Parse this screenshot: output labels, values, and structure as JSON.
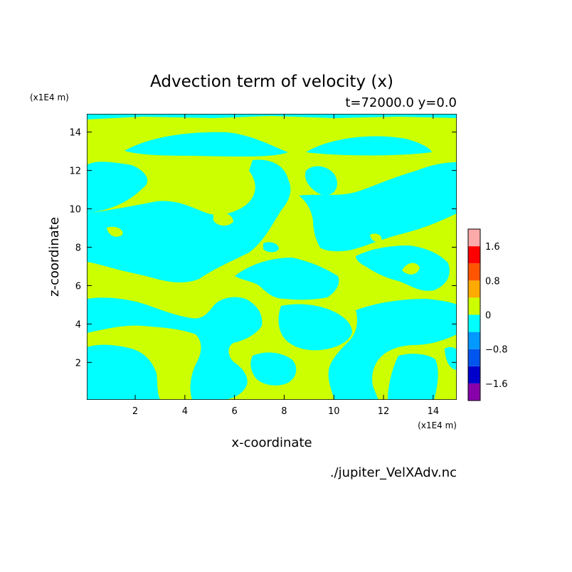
{
  "chart_data": {
    "type": "heatmap",
    "title": "Advection term of velocity (x)",
    "subtitle": "t=72000.0 y=0.0",
    "xlabel": "x-coordinate",
    "ylabel": "z-coordinate",
    "x_unit": "(x1E4 m)",
    "y_unit": "(x1E4 m)",
    "xlim": [
      0.05,
      14.95
    ],
    "ylim": [
      0.05,
      14.95
    ],
    "x_ticks": [
      2,
      4,
      6,
      8,
      10,
      12,
      14
    ],
    "y_ticks": [
      2,
      4,
      6,
      8,
      10,
      12,
      14
    ],
    "colorbar": {
      "levels": [
        -2.0,
        -1.6,
        -1.2,
        -0.8,
        -0.4,
        0,
        0.4,
        0.8,
        1.2,
        1.6,
        2.0
      ],
      "labels": [
        -1.6,
        -0.8,
        0,
        0.8,
        1.6
      ],
      "colors": [
        "#8800aa",
        "#0000cc",
        "#0055ee",
        "#0099ff",
        "#00ffff",
        "#ccff00",
        "#ffaa00",
        "#ff5500",
        "#ff0000",
        "#ffaaaa"
      ]
    },
    "field_colors": {
      "negative": "#00ffff",
      "positive": "#ccff00"
    },
    "source_file": "./jupiter_VelXAdv.nc"
  }
}
